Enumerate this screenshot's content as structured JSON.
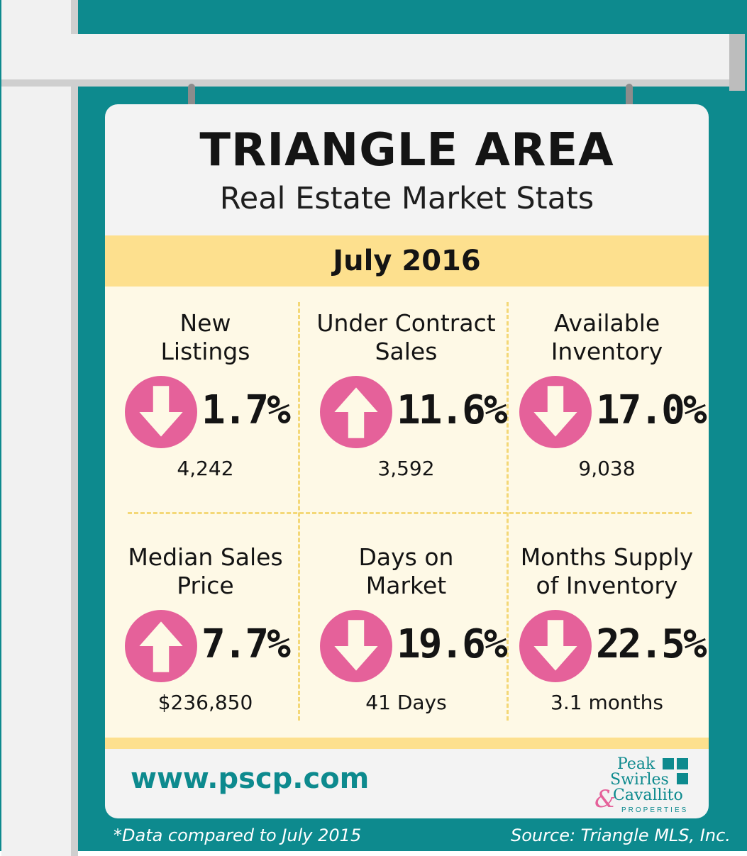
{
  "title": "TRIANGLE AREA",
  "subtitle": "Real Estate Market Stats",
  "period": "July 2016",
  "stats": [
    {
      "label_1": "New",
      "label_2": "Listings",
      "direction": "down",
      "change": "1.7%",
      "value": "4,242"
    },
    {
      "label_1": "Under Contract",
      "label_2": "Sales",
      "direction": "up",
      "change": "11.6%",
      "value": "3,592"
    },
    {
      "label_1": "Available",
      "label_2": "Inventory",
      "direction": "down",
      "change": "17.0%",
      "value": "9,038"
    },
    {
      "label_1": "Median Sales",
      "label_2": "Price",
      "direction": "up",
      "change": "7.7%",
      "value": "$236,850"
    },
    {
      "label_1": "Days on",
      "label_2": "Market",
      "direction": "down",
      "change": "19.6%",
      "value": "41 Days"
    },
    {
      "label_1": "Months Supply",
      "label_2": "of Inventory",
      "direction": "down",
      "change": "22.5%",
      "value": "3.1 months"
    }
  ],
  "website": "www.pscp.com",
  "logo": {
    "line_1": "Peak",
    "line_2": "Swirles",
    "line_3": "Cavallito",
    "ampersand": "&",
    "tagline": "PROPERTIES"
  },
  "footnote": "*Data compared to July 2015",
  "source": "Source: Triangle MLS, Inc.",
  "colors": {
    "teal": "#0d8a8e",
    "arrow_pink": "#e5619a",
    "band_yellow": "#fde08e",
    "panel_cream": "#fef9e6"
  }
}
